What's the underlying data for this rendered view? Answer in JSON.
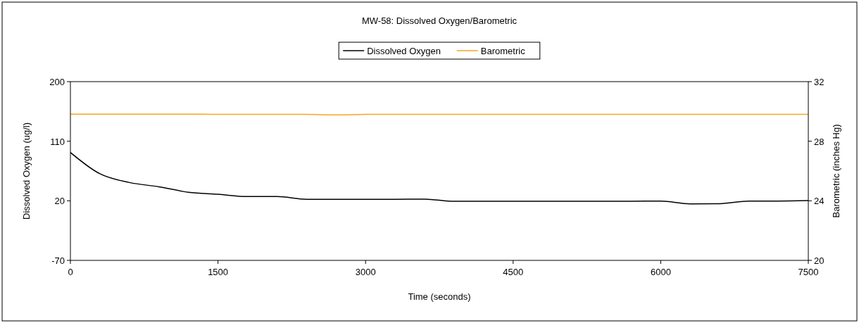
{
  "chart_data": {
    "type": "line",
    "title": "MW-58: Dissolved Oxygen/Barometric",
    "xlabel": "Time (seconds)",
    "ylabel": "Dissolved Oxygen (ug/l)",
    "y2label": "Barometric (inches Hg)",
    "x": [
      0,
      300,
      600,
      900,
      1200,
      1500,
      1800,
      2100,
      2400,
      2700,
      3000,
      3300,
      3600,
      3900,
      4200,
      4500,
      4800,
      5100,
      5400,
      5700,
      6000,
      6300,
      6600,
      6900,
      7200,
      7500
    ],
    "series": [
      {
        "name": "Dissolved Oxygen",
        "color": "#000000",
        "values": [
          93,
          60.8,
          47.6,
          41.2,
          32.9,
          29.8,
          26.4,
          26.4,
          22.3,
          22.3,
          22.3,
          22.3,
          22.6,
          19.2,
          19.3,
          19.3,
          19.3,
          19.3,
          19.3,
          19.3,
          19.6,
          15.4,
          15.7,
          19.6,
          19.6,
          20.3
        ]
      },
      {
        "name": "Barometric",
        "color": "#f5a623",
        "axis": "y2",
        "values": [
          29.82,
          29.82,
          29.82,
          29.82,
          29.82,
          29.8,
          29.8,
          29.8,
          29.8,
          29.77,
          29.8,
          29.8,
          29.8,
          29.8,
          29.8,
          29.8,
          29.8,
          29.8,
          29.8,
          29.8,
          29.8,
          29.8,
          29.8,
          29.8,
          29.8,
          29.8
        ]
      }
    ],
    "xlim": [
      0,
      7500
    ],
    "xticks": [
      0,
      1500,
      3000,
      4500,
      6000,
      7500
    ],
    "ylim": [
      -70,
      200
    ],
    "yticks": [
      -70,
      20,
      110,
      200
    ],
    "y2lim": [
      20,
      32
    ],
    "y2ticks": [
      20,
      24,
      28,
      32
    ],
    "legend": "top",
    "grid": false,
    "marker": "none",
    "line_style": "solid"
  }
}
